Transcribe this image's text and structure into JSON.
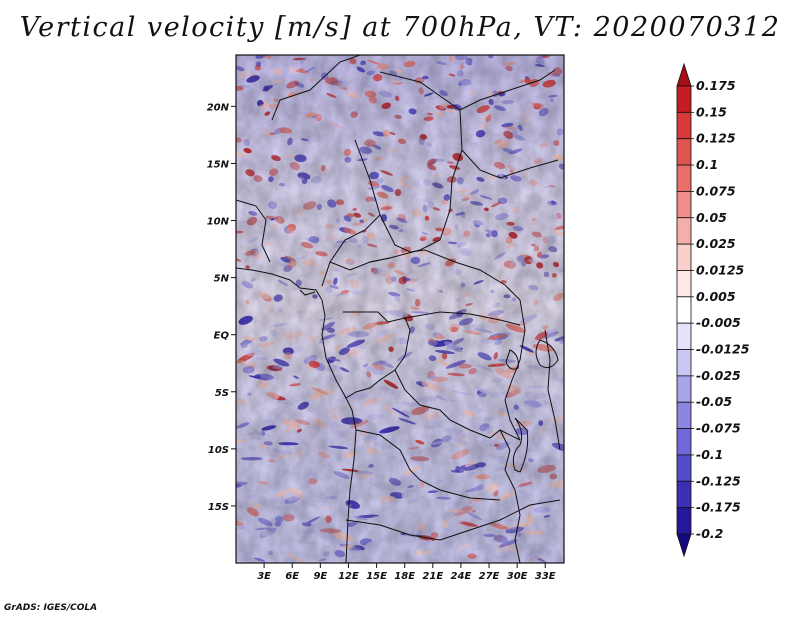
{
  "title": "Vertical velocity [m/s] at 700hPa, VT: 2020070312",
  "credit": "GrADS: IGES/COLA",
  "map": {
    "lon_range": [
      0,
      35
    ],
    "lat_range": [
      -20,
      24.5
    ],
    "lon_ticks": [
      "3E",
      "6E",
      "9E",
      "12E",
      "15E",
      "18E",
      "21E",
      "24E",
      "27E",
      "30E",
      "33E"
    ],
    "lat_ticks": [
      "20N",
      "15N",
      "10N",
      "5N",
      "EQ",
      "5S",
      "10S",
      "15S"
    ]
  },
  "colorbar": {
    "labels": [
      "0.175",
      "0.15",
      "0.125",
      "0.1",
      "0.075",
      "0.05",
      "0.025",
      "0.0125",
      "0.005",
      "-0.005",
      "-0.0125",
      "-0.025",
      "-0.05",
      "-0.075",
      "-0.1",
      "-0.125",
      "-0.175",
      "-0.2"
    ],
    "colors": [
      "#a50f15",
      "#c51b23",
      "#d73a3a",
      "#e0544f",
      "#e86f6a",
      "#ef8d88",
      "#f5aeaa",
      "#f9cfcc",
      "#fde8e6",
      "#ffffff",
      "#e4e3fb",
      "#cac7f4",
      "#a9a4ea",
      "#8c86e0",
      "#6f68d6",
      "#544bc8",
      "#3a2fb5",
      "#25179b",
      "#16087e"
    ]
  }
}
